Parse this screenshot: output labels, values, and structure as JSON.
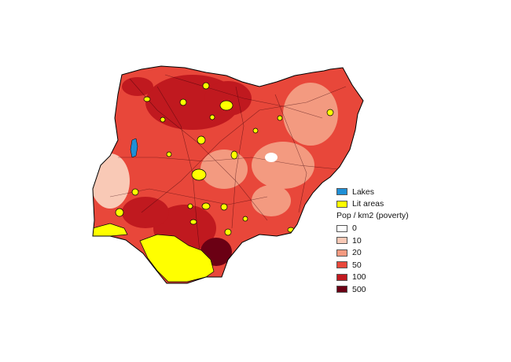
{
  "legend": {
    "lakes": {
      "label": "Lakes",
      "color": "#1f8fd6"
    },
    "lit": {
      "label": "Lit areas",
      "color": "#ffff00"
    },
    "density_title": "Pop / km2 (poverty)",
    "classes": [
      {
        "label": "0",
        "color": "#ffffff"
      },
      {
        "label": "10",
        "color": "#f9c9b6"
      },
      {
        "label": "20",
        "color": "#f39a80"
      },
      {
        "label": "50",
        "color": "#e8473a"
      },
      {
        "label": "100",
        "color": "#c0191f"
      },
      {
        "label": "500",
        "color": "#6b0014"
      }
    ]
  }
}
